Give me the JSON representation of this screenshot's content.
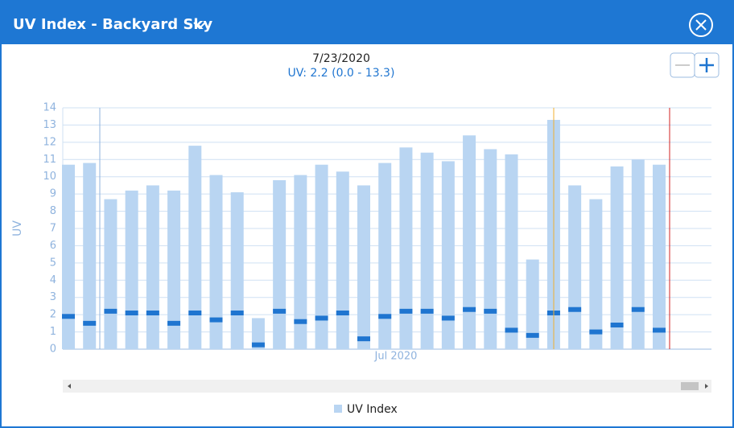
{
  "header": {
    "title": "UV Index - Backyard Sky"
  },
  "tooltip": {
    "date": "7/23/2020",
    "reading": "UV: 2.2 (0.0 - 13.3)"
  },
  "chart_data": {
    "type": "bar",
    "y_label": "UV",
    "x_annotation": "Jul 2020",
    "categories": [
      null,
      null,
      null,
      null,
      null,
      null,
      null,
      null,
      null,
      null,
      null,
      null,
      null,
      null,
      null,
      null,
      null,
      null,
      null,
      null,
      null,
      null,
      null,
      null,
      null,
      null,
      null,
      null,
      null
    ],
    "series": [
      {
        "name": "UV Index",
        "color": "#b9d5f2",
        "values": [
          10.7,
          10.8,
          8.7,
          9.2,
          9.5,
          9.2,
          11.8,
          10.1,
          9.1,
          1.8,
          9.8,
          10.1,
          10.7,
          10.3,
          9.5,
          10.8,
          11.7,
          11.4,
          10.9,
          12.4,
          11.6,
          11.3,
          5.2,
          13.3,
          9.5,
          8.7,
          10.6,
          11.0,
          10.7
        ]
      },
      {
        "color": "#1f75d0",
        "values": [
          1.9,
          1.5,
          2.2,
          2.1,
          2.1,
          1.5,
          2.1,
          1.7,
          2.1,
          0.25,
          2.2,
          1.6,
          1.8,
          2.1,
          0.6,
          1.9,
          2.2,
          2.2,
          1.8,
          2.3,
          2.2,
          1.1,
          0.8,
          2.1,
          2.3,
          1.0,
          1.4,
          2.3,
          1.1
        ]
      }
    ],
    "ylim": [
      0,
      14
    ],
    "yticks": [
      0,
      1,
      2,
      3,
      4,
      5,
      6,
      7,
      8,
      9,
      10,
      11,
      12,
      13,
      14
    ],
    "grid": true
  }
}
